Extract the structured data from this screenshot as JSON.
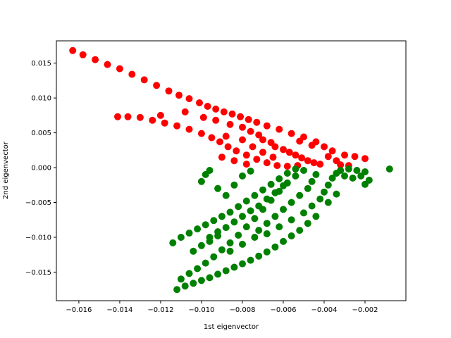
{
  "chart_data": {
    "type": "scatter",
    "title": "",
    "xlabel": "1st eigenvector",
    "ylabel": "2nd eigenvector",
    "xlim": [
      -0.0171,
      -0.0
    ],
    "ylim": [
      -0.0191,
      0.0182
    ],
    "grid": false,
    "legend": "none",
    "x_ticks": [
      -0.016,
      -0.014,
      -0.012,
      -0.01,
      -0.008,
      -0.006,
      -0.004,
      -0.002
    ],
    "x_tick_labels": [
      "−0.016",
      "−0.014",
      "−0.012",
      "−0.010",
      "−0.008",
      "−0.006",
      "−0.004",
      "−0.002"
    ],
    "y_ticks": [
      0.015,
      0.01,
      0.005,
      0.0,
      -0.005,
      -0.01,
      -0.015
    ],
    "y_tick_labels": [
      "0.015",
      "0.010",
      "0.005",
      "0.000",
      "−0.005",
      "−0.010",
      "−0.015"
    ],
    "series": [
      {
        "color": "#ff0000",
        "points": [
          [
            -0.0163,
            0.0168
          ],
          [
            -0.0158,
            0.0162
          ],
          [
            -0.0152,
            0.0155
          ],
          [
            -0.0146,
            0.0148
          ],
          [
            -0.014,
            0.0142
          ],
          [
            -0.0134,
            0.0134
          ],
          [
            -0.0128,
            0.0126
          ],
          [
            -0.0122,
            0.0118
          ],
          [
            -0.0116,
            0.011
          ],
          [
            -0.0111,
            0.0104
          ],
          [
            -0.0106,
            0.0099
          ],
          [
            -0.0101,
            0.0093
          ],
          [
            -0.0097,
            0.0088
          ],
          [
            -0.0093,
            0.0084
          ],
          [
            -0.0089,
            0.008
          ],
          [
            -0.0085,
            0.0077
          ],
          [
            -0.0081,
            0.0073
          ],
          [
            -0.0077,
            0.0069
          ],
          [
            -0.0073,
            0.0065
          ],
          [
            -0.0068,
            0.006
          ],
          [
            -0.0062,
            0.0055
          ],
          [
            -0.0056,
            0.0049
          ],
          [
            -0.005,
            0.0044
          ],
          [
            -0.0044,
            0.0037
          ],
          [
            -0.004,
            0.003
          ],
          [
            -0.0036,
            0.0024
          ],
          [
            -0.0141,
            0.0073
          ],
          [
            -0.0136,
            0.0073
          ],
          [
            -0.013,
            0.0072
          ],
          [
            -0.0124,
            0.0068
          ],
          [
            -0.0118,
            0.0064
          ],
          [
            -0.0112,
            0.006
          ],
          [
            -0.0106,
            0.0055
          ],
          [
            -0.01,
            0.0049
          ],
          [
            -0.0095,
            0.0043
          ],
          [
            -0.0091,
            0.0037
          ],
          [
            -0.0087,
            0.003
          ],
          [
            -0.0083,
            0.0024
          ],
          [
            -0.0078,
            0.0018
          ],
          [
            -0.0073,
            0.0012
          ],
          [
            -0.0068,
            0.0007
          ],
          [
            -0.0063,
            0.0003
          ],
          [
            -0.0058,
            0.0002
          ],
          [
            -0.0053,
            0.0003
          ],
          [
            -0.012,
            0.0075
          ],
          [
            -0.0108,
            0.008
          ],
          [
            -0.0099,
            0.0072
          ],
          [
            -0.0093,
            0.0068
          ],
          [
            -0.0086,
            0.0062
          ],
          [
            -0.008,
            0.0058
          ],
          [
            -0.0076,
            0.0052
          ],
          [
            -0.0072,
            0.0047
          ],
          [
            -0.007,
            0.004
          ],
          [
            -0.0066,
            0.0036
          ],
          [
            -0.0064,
            0.003
          ],
          [
            -0.006,
            0.0026
          ],
          [
            -0.0057,
            0.0022
          ],
          [
            -0.0054,
            0.0018
          ],
          [
            -0.0051,
            0.0014
          ],
          [
            -0.0048,
            0.001
          ],
          [
            -0.0045,
            0.0007
          ],
          [
            -0.0042,
            0.0005
          ],
          [
            -0.0046,
            0.0032
          ],
          [
            -0.0052,
            0.0038
          ],
          [
            -0.0088,
            0.0045
          ],
          [
            -0.008,
            0.004
          ],
          [
            -0.0075,
            0.003
          ],
          [
            -0.007,
            0.0022
          ],
          [
            -0.0065,
            0.0015
          ],
          [
            -0.0084,
            0.001
          ],
          [
            -0.009,
            0.0015
          ],
          [
            -0.0078,
            0.0005
          ],
          [
            -0.003,
            0.0018
          ],
          [
            -0.0025,
            0.0016
          ],
          [
            -0.002,
            0.0013
          ],
          [
            -0.0034,
            0.001
          ],
          [
            -0.0038,
            0.0016
          ],
          [
            -0.0032,
            0.0004
          ],
          [
            -0.0028,
            0.0003
          ]
        ]
      },
      {
        "color": "#008000",
        "points": [
          [
            -0.0112,
            -0.0175
          ],
          [
            -0.0108,
            -0.017
          ],
          [
            -0.0104,
            -0.0166
          ],
          [
            -0.01,
            -0.0162
          ],
          [
            -0.0096,
            -0.0158
          ],
          [
            -0.0092,
            -0.0153
          ],
          [
            -0.0088,
            -0.0148
          ],
          [
            -0.0084,
            -0.0143
          ],
          [
            -0.008,
            -0.0138
          ],
          [
            -0.0076,
            -0.0133
          ],
          [
            -0.0072,
            -0.0127
          ],
          [
            -0.0068,
            -0.0121
          ],
          [
            -0.0064,
            -0.0114
          ],
          [
            -0.006,
            -0.0106
          ],
          [
            -0.0056,
            -0.0098
          ],
          [
            -0.0052,
            -0.009
          ],
          [
            -0.0048,
            -0.008
          ],
          [
            -0.0044,
            -0.007
          ],
          [
            -0.011,
            -0.016
          ],
          [
            -0.0106,
            -0.0152
          ],
          [
            -0.0102,
            -0.0145
          ],
          [
            -0.0098,
            -0.0137
          ],
          [
            -0.0094,
            -0.0128
          ],
          [
            -0.009,
            -0.0118
          ],
          [
            -0.0086,
            -0.0108
          ],
          [
            -0.0082,
            -0.0097
          ],
          [
            -0.0078,
            -0.0085
          ],
          [
            -0.0074,
            -0.0073
          ],
          [
            -0.007,
            -0.006
          ],
          [
            -0.0066,
            -0.0047
          ],
          [
            -0.0062,
            -0.0034
          ],
          [
            -0.0058,
            -0.0022
          ],
          [
            -0.0054,
            -0.0012
          ],
          [
            -0.005,
            -0.0004
          ],
          [
            -0.0114,
            -0.0108
          ],
          [
            -0.011,
            -0.01
          ],
          [
            -0.0106,
            -0.0094
          ],
          [
            -0.0102,
            -0.0088
          ],
          [
            -0.0098,
            -0.0082
          ],
          [
            -0.0094,
            -0.0076
          ],
          [
            -0.009,
            -0.007
          ],
          [
            -0.0086,
            -0.0064
          ],
          [
            -0.0082,
            -0.0056
          ],
          [
            -0.0078,
            -0.0048
          ],
          [
            -0.0074,
            -0.004
          ],
          [
            -0.007,
            -0.0032
          ],
          [
            -0.0066,
            -0.0024
          ],
          [
            -0.0062,
            -0.0016
          ],
          [
            -0.0058,
            -0.0008
          ],
          [
            -0.0054,
            -0.0002
          ],
          [
            -0.01,
            -0.002
          ],
          [
            -0.0098,
            -0.001
          ],
          [
            -0.0096,
            -0.0004
          ],
          [
            -0.0092,
            -0.003
          ],
          [
            -0.0088,
            -0.004
          ],
          [
            -0.0084,
            -0.0025
          ],
          [
            -0.008,
            -0.0012
          ],
          [
            -0.0076,
            -0.0005
          ],
          [
            -0.0072,
            -0.009
          ],
          [
            -0.0068,
            -0.008
          ],
          [
            -0.0064,
            -0.007
          ],
          [
            -0.006,
            -0.006
          ],
          [
            -0.0056,
            -0.005
          ],
          [
            -0.0052,
            -0.004
          ],
          [
            -0.0048,
            -0.003
          ],
          [
            -0.0046,
            -0.002
          ],
          [
            -0.0044,
            -0.001
          ],
          [
            -0.0042,
            -0.0045
          ],
          [
            -0.004,
            -0.0035
          ],
          [
            -0.0038,
            -0.0025
          ],
          [
            -0.0036,
            -0.0015
          ],
          [
            -0.0034,
            -0.0008
          ],
          [
            -0.0032,
            -0.0004
          ],
          [
            -0.0028,
            -0.0002
          ],
          [
            -0.0024,
            -0.0004
          ],
          [
            -0.002,
            -0.0006
          ],
          [
            -0.0026,
            -0.0015
          ],
          [
            -0.003,
            -0.0012
          ],
          [
            -0.0034,
            -0.0038
          ],
          [
            -0.0038,
            -0.005
          ],
          [
            -0.0022,
            -0.0012
          ],
          [
            -0.002,
            -0.0024
          ],
          [
            -0.0018,
            -0.0018
          ],
          [
            -0.0008,
            -0.0002
          ],
          [
            -0.0096,
            -0.01
          ],
          [
            -0.0092,
            -0.0092
          ],
          [
            -0.0088,
            -0.0086
          ],
          [
            -0.0084,
            -0.0078
          ],
          [
            -0.008,
            -0.007
          ],
          [
            -0.0076,
            -0.0062
          ],
          [
            -0.0072,
            -0.0055
          ],
          [
            -0.0068,
            -0.0045
          ],
          [
            -0.0064,
            -0.0036
          ],
          [
            -0.006,
            -0.0026
          ],
          [
            -0.0104,
            -0.012
          ],
          [
            -0.01,
            -0.0112
          ],
          [
            -0.0096,
            -0.0106
          ],
          [
            -0.0092,
            -0.0098
          ],
          [
            -0.0086,
            -0.012
          ],
          [
            -0.008,
            -0.011
          ],
          [
            -0.0074,
            -0.01
          ],
          [
            -0.0068,
            -0.0095
          ],
          [
            -0.0062,
            -0.0085
          ],
          [
            -0.0056,
            -0.0075
          ],
          [
            -0.005,
            -0.0065
          ],
          [
            -0.0046,
            -0.0055
          ]
        ]
      }
    ]
  }
}
